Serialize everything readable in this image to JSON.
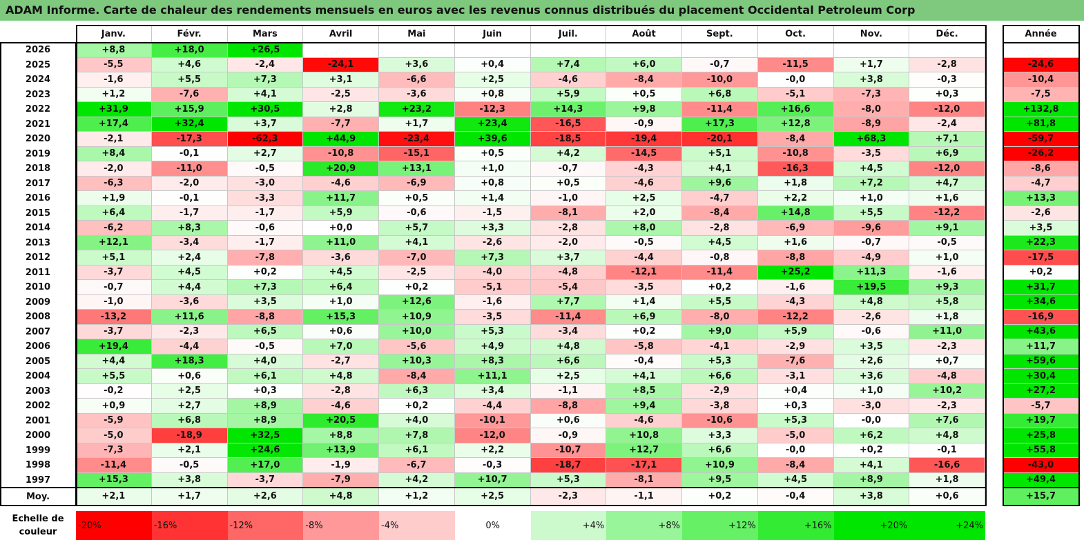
{
  "title": "ADAM Informe. Carte de chaleur des rendements mensuels en euros avec les revenus connus distribués du placement Occidental Petroleum Corp",
  "chart_data": {
    "type": "heatmap",
    "months": [
      "Janv.",
      "Févr.",
      "Mars",
      "Avril",
      "Mai",
      "Juin",
      "Juil.",
      "Août",
      "Sept.",
      "Oct.",
      "Nov.",
      "Déc."
    ],
    "year_header": "Année",
    "rows": [
      {
        "label": "2026",
        "values": [
          "+8,8",
          "+18,0",
          "+26,5",
          "",
          "",
          "",
          "",
          "",
          "",
          "",
          "",
          ""
        ],
        "year": ""
      },
      {
        "label": "2025",
        "values": [
          "-5,5",
          "+4,6",
          "-2,4",
          "-24,1",
          "+3,6",
          "+0,4",
          "+7,4",
          "+6,0",
          "-0,7",
          "-11,5",
          "+1,7",
          "-2,8"
        ],
        "year": "-24,6"
      },
      {
        "label": "2024",
        "values": [
          "-1,6",
          "+5,5",
          "+7,3",
          "+3,1",
          "-6,6",
          "+2,5",
          "-4,6",
          "-8,4",
          "-10,0",
          "-0,0",
          "+3,8",
          "-0,3"
        ],
        "year": "-10,4"
      },
      {
        "label": "2023",
        "values": [
          "+1,2",
          "-7,6",
          "+4,1",
          "-2,5",
          "-3,6",
          "+0,8",
          "+5,9",
          "+0,5",
          "+6,8",
          "-5,1",
          "-7,3",
          "+0,3"
        ],
        "year": "-7,5"
      },
      {
        "label": "2022",
        "values": [
          "+31,9",
          "+15,9",
          "+30,5",
          "+2,8",
          "+23,2",
          "-12,3",
          "+14,3",
          "+9,8",
          "-11,4",
          "+16,6",
          "-8,0",
          "-12,0"
        ],
        "year": "+132,8"
      },
      {
        "label": "2021",
        "values": [
          "+17,4",
          "+32,4",
          "+3,7",
          "-7,7",
          "+1,7",
          "+23,4",
          "-16,5",
          "-0,9",
          "+17,3",
          "+12,8",
          "-8,9",
          "-2,4"
        ],
        "year": "+81,8"
      },
      {
        "label": "2020",
        "values": [
          "-2,1",
          "-17,3",
          "-62,3",
          "+44,9",
          "-23,4",
          "+39,6",
          "-18,5",
          "-19,4",
          "-20,1",
          "-8,4",
          "+68,3",
          "+7,1"
        ],
        "year": "-59,7"
      },
      {
        "label": "2019",
        "values": [
          "+8,4",
          "-0,1",
          "+2,7",
          "-10,8",
          "-15,1",
          "+0,5",
          "+4,2",
          "-14,5",
          "+5,1",
          "-10,8",
          "-3,5",
          "+6,9"
        ],
        "year": "-26,2"
      },
      {
        "label": "2018",
        "values": [
          "-2,0",
          "-11,0",
          "-0,5",
          "+20,9",
          "+13,1",
          "+1,0",
          "-0,7",
          "-4,3",
          "+4,1",
          "-16,3",
          "+4,5",
          "-12,0"
        ],
        "year": "-8,6"
      },
      {
        "label": "2017",
        "values": [
          "-6,3",
          "-2,0",
          "-3,0",
          "-4,6",
          "-6,9",
          "+0,8",
          "+0,5",
          "-4,6",
          "+9,6",
          "+1,8",
          "+7,2",
          "+4,7"
        ],
        "year": "-4,7"
      },
      {
        "label": "2016",
        "values": [
          "+1,9",
          "-0,1",
          "-3,3",
          "+11,7",
          "+0,5",
          "+1,4",
          "-1,0",
          "+2,5",
          "-4,7",
          "+2,2",
          "+1,0",
          "+1,6"
        ],
        "year": "+13,3"
      },
      {
        "label": "2015",
        "values": [
          "+6,4",
          "-1,7",
          "-1,7",
          "+5,9",
          "-0,6",
          "-1,5",
          "-8,1",
          "+2,0",
          "-8,4",
          "+14,8",
          "+5,5",
          "-12,2"
        ],
        "year": "-2,6"
      },
      {
        "label": "2014",
        "values": [
          "-6,2",
          "+8,3",
          "-0,6",
          "+0,0",
          "+5,7",
          "+3,3",
          "-2,8",
          "+8,0",
          "-2,8",
          "-6,9",
          "-9,6",
          "+9,1"
        ],
        "year": "+3,5"
      },
      {
        "label": "2013",
        "values": [
          "+12,1",
          "-3,4",
          "-1,7",
          "+11,0",
          "+4,1",
          "-2,6",
          "-2,0",
          "-0,5",
          "+4,5",
          "+1,6",
          "-0,7",
          "-0,5"
        ],
        "year": "+22,3"
      },
      {
        "label": "2012",
        "values": [
          "+5,1",
          "+2,4",
          "-7,8",
          "-3,6",
          "-7,0",
          "+7,3",
          "+3,7",
          "-4,4",
          "-0,8",
          "-8,8",
          "-4,9",
          "+1,0"
        ],
        "year": "-17,5"
      },
      {
        "label": "2011",
        "values": [
          "-3,7",
          "+4,5",
          "+0,2",
          "+4,5",
          "-2,5",
          "-4,0",
          "-4,8",
          "-12,1",
          "-11,4",
          "+25,2",
          "+11,3",
          "-1,6"
        ],
        "year": "+0,2"
      },
      {
        "label": "2010",
        "values": [
          "-0,7",
          "+4,4",
          "+7,3",
          "+6,4",
          "+0,2",
          "-5,1",
          "-5,4",
          "-3,5",
          "+0,2",
          "-1,6",
          "+19,5",
          "+9,3"
        ],
        "year": "+31,7"
      },
      {
        "label": "2009",
        "values": [
          "-1,0",
          "-3,6",
          "+3,5",
          "+1,0",
          "+12,6",
          "-1,6",
          "+7,7",
          "+1,4",
          "+5,5",
          "-4,3",
          "+4,8",
          "+5,8"
        ],
        "year": "+34,6"
      },
      {
        "label": "2008",
        "values": [
          "-13,2",
          "+11,6",
          "-8,8",
          "+15,3",
          "+10,9",
          "-3,5",
          "-11,4",
          "+6,9",
          "-8,0",
          "-12,2",
          "-2,6",
          "+1,8"
        ],
        "year": "-16,9"
      },
      {
        "label": "2007",
        "values": [
          "-3,7",
          "-2,3",
          "+6,5",
          "+0,6",
          "+10,0",
          "+5,3",
          "-3,4",
          "+0,2",
          "+9,0",
          "+5,9",
          "-0,6",
          "+11,0"
        ],
        "year": "+43,6"
      },
      {
        "label": "2006",
        "values": [
          "+19,4",
          "-4,4",
          "-0,5",
          "+7,0",
          "-5,6",
          "+4,9",
          "+4,8",
          "-5,8",
          "-4,1",
          "-2,9",
          "+3,5",
          "-2,3"
        ],
        "year": "+11,7"
      },
      {
        "label": "2005",
        "values": [
          "+4,4",
          "+18,3",
          "+4,0",
          "-2,7",
          "+10,3",
          "+8,3",
          "+6,6",
          "-0,4",
          "+5,3",
          "-7,6",
          "+2,6",
          "+0,7"
        ],
        "year": "+59,6"
      },
      {
        "label": "2004",
        "values": [
          "+5,5",
          "+0,6",
          "+6,1",
          "+4,8",
          "-8,4",
          "+11,1",
          "+2,5",
          "+4,1",
          "+6,6",
          "-3,1",
          "+3,6",
          "-4,8"
        ],
        "year": "+30,4"
      },
      {
        "label": "2003",
        "values": [
          "-0,2",
          "+2,5",
          "+0,3",
          "-2,8",
          "+6,3",
          "+3,4",
          "-1,1",
          "+8,5",
          "-2,9",
          "+0,4",
          "+1,0",
          "+10,2"
        ],
        "year": "+27,2"
      },
      {
        "label": "2002",
        "values": [
          "+0,9",
          "+2,7",
          "+8,9",
          "-4,6",
          "+0,2",
          "-4,4",
          "-8,8",
          "+9,4",
          "-3,8",
          "+0,3",
          "-3,0",
          "-2,3"
        ],
        "year": "-5,7"
      },
      {
        "label": "2001",
        "values": [
          "-5,9",
          "+6,8",
          "+8,9",
          "+20,5",
          "+4,0",
          "-10,1",
          "+0,6",
          "-4,6",
          "-10,6",
          "+5,3",
          "-0,0",
          "+7,6"
        ],
        "year": "+19,7"
      },
      {
        "label": "2000",
        "values": [
          "-5,0",
          "-18,9",
          "+32,5",
          "+8,8",
          "+7,8",
          "-12,0",
          "-0,9",
          "+10,8",
          "+3,3",
          "-5,0",
          "+6,2",
          "+4,8"
        ],
        "year": "+25,8"
      },
      {
        "label": "1999",
        "values": [
          "-7,3",
          "+2,1",
          "+24,6",
          "+13,9",
          "+6,1",
          "+2,2",
          "-10,7",
          "+12,7",
          "+6,6",
          "-0,0",
          "+0,2",
          "-0,1"
        ],
        "year": "+55,8"
      },
      {
        "label": "1998",
        "values": [
          "-11,4",
          "-0,5",
          "+17,0",
          "-1,9",
          "-6,7",
          "-0,3",
          "-18,7",
          "-17,1",
          "+10,9",
          "-8,4",
          "+4,1",
          "-16,6"
        ],
        "year": "-43,0"
      },
      {
        "label": "1997",
        "values": [
          "+15,3",
          "+3,8",
          "-3,7",
          "-7,9",
          "+4,2",
          "+10,7",
          "+5,3",
          "-8,1",
          "+9,5",
          "+4,5",
          "+8,9",
          "+1,8"
        ],
        "year": "+49,4"
      }
    ],
    "average": {
      "label": "Moy.",
      "values": [
        "+2,1",
        "+1,7",
        "+2,6",
        "+4,8",
        "+1,2",
        "+2,5",
        "-2,3",
        "-1,1",
        "+0,2",
        "-0,4",
        "+3,8",
        "+0,6"
      ],
      "year": "+15,7"
    },
    "legend": {
      "label": "Echelle de\ncouleur",
      "items": [
        {
          "text": "-20%",
          "value": -20
        },
        {
          "text": "-16%",
          "value": -16
        },
        {
          "text": "-12%",
          "value": -12
        },
        {
          "text": "-8%",
          "value": -8
        },
        {
          "text": "-4%",
          "value": -4
        },
        {
          "text": "0%",
          "value": 0
        },
        {
          "text": "+4%",
          "value": 4
        },
        {
          "text": "+8%",
          "value": 8
        },
        {
          "text": "+12%",
          "value": 12
        },
        {
          "text": "+16%",
          "value": 16
        },
        {
          "text": "+20%",
          "value": 20
        },
        {
          "text": "+24%",
          "value": 24
        }
      ]
    },
    "colors": {
      "negative": "#ff0000",
      "neutral": "#ffffff",
      "positive": "#00e600"
    }
  }
}
